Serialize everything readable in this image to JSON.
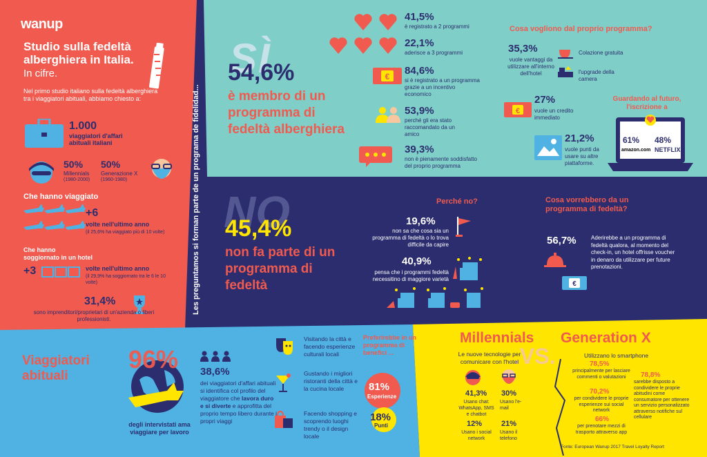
{
  "colors": {
    "red": "#f05a4f",
    "teal": "#7fcfc8",
    "navy": "#2b2d6e",
    "light_blue": "#4fb2e3",
    "yellow": "#ffe500"
  },
  "brand": "wanup",
  "left": {
    "title": "Studio sulla fedeltà alberghiera in Italia.",
    "subtitle": "In cifre.",
    "intro": "Nel primo studio italiano sulla fedeltà alberghiera tra i viaggiatori abituali, abbiamo chiesto a:",
    "count": "1.000",
    "count_label": "viaggiatori d'affari abituali italiani",
    "millennials_pct": "50%",
    "millennials_label": "Millennials",
    "millennials_years": "(1980-2000)",
    "genx_pct": "50%",
    "genx_label": "Generazione X",
    "genx_years": "(1960-1980)",
    "travel_heading": "Che hanno viaggiato",
    "travel_value": "+6",
    "travel_label": "volte nell'ultimo anno",
    "travel_note": "(il 25,6% ha viaggiato più di 10 volte)",
    "hotel_heading": "Che hanno soggiornato in un hotel",
    "hotel_value": "+3",
    "hotel_label": "volte nell'ultimo anno",
    "hotel_note": "(il 29,9% ha soggiornato tra le 6 le 10 volte)",
    "entre_pct": "31,4%",
    "entre_label": "sono imprenditori/proprietari di un'azienda o liberi professionisti."
  },
  "vertical_label": "Les preguntamos si forman parte de un programa de fidelidad...",
  "si": {
    "word": "SÌ",
    "pct": "54,6%",
    "text": "è membro di un programma di fedeltà alberghiera",
    "stats": [
      {
        "pct": "41,5%",
        "text": "è registrato a 2 programmi"
      },
      {
        "pct": "22,1%",
        "text": "aderisce a 3 programmi"
      },
      {
        "pct": "84,6%",
        "text": "si è registrato a un programma grazie a un incentivo economico"
      },
      {
        "pct": "53,9%",
        "text": "perché gli era stato raccomandato da un amico"
      },
      {
        "pct": "39,3%",
        "text": "non è pienamente soddisfatto del proprio programma"
      }
    ],
    "want_heading": "Cosa vogliono dal proprio programma?",
    "want_pct": "35,3%",
    "want_text": "vuole vantaggi da utilizzare all'interno dell'hotel",
    "breakfast": "Colazione gratuita",
    "upgrade": "l'upgrade della camera",
    "credit_pct": "27%",
    "credit_text": "vuole un credito immediato",
    "future_heading": "Guardando al futuro, l'iscrizione a",
    "amazon_pct": "61%",
    "amazon": "amazon.com",
    "netflix_pct": "48%",
    "netflix": "NETFLIX",
    "points_pct": "21,2%",
    "points_text": "vuole punti da usare su altre piattaforme."
  },
  "no": {
    "word": "NO",
    "pct": "45,4%",
    "text": "non fa parte di un programma di fedeltà",
    "why_heading": "Perché no?",
    "why1_pct": "19,6%",
    "why1_text": "non sa che cosa sia un programma di fedeltà o lo trova difficile da capire",
    "why2_pct": "40,9%",
    "why2_text": "pensa che i programmi fedeltà necessitino di maggiore varietà",
    "would_heading": "Cosa vorrebbero da un programma di fedeltà?",
    "would_pct": "56,7%",
    "would_text": "Aderirebbe a un programma di fedeltà qualora, al momento del check-in, un hotel offrisse voucher in denaro da utilizzare per future prenotazioni."
  },
  "bottom": {
    "title": "Viaggiatori abituali",
    "pct96": "96%",
    "pct96_text": "degli intervistati ama viaggiare per lavoro",
    "pct386": "38,6%",
    "text386_a": "dei viaggiatori d'affari abituali si identifica col profilo del viaggiatore che ",
    "text386_b": "lavora duro e si diverte",
    "text386_c": " e approfitta del proprio tempo libero durante i propri viaggi",
    "act1": "Visitando la città e facendo esperienze culturali locali",
    "act2": "Gustando i migliori ristoranti della città e la cucina locale",
    "act3": "Facendo shopping e scoprendo luoghi trendy o il design locale",
    "pref_heading": "Preferirebbe in un programma di benefici ...",
    "exp_pct": "81%",
    "exp_label": "Esperienze",
    "pts_pct": "18%",
    "pts_label": "Punti"
  },
  "vs": {
    "millennials": "Millennials",
    "genx": "Generation X",
    "vs": ".VS.",
    "tech_heading": "Le nuove tecnologie per comunicare con l'hotel",
    "m1_pct": "41,3%",
    "m1_text": "Usano chat: WhatsApp, SMS e chatbot",
    "g1_pct": "30%",
    "g1_text": "Usano l'e-mail",
    "m2_pct": "12%",
    "m2_text": "Usano i social network",
    "g2_pct": "21%",
    "g2_text": "Usano il telefono",
    "smart_heading": "Utilizzano lo smartphone",
    "s1_pct": "78,5%",
    "s1_text": "principalmente per lasciare commenti o valutazioni",
    "s2_pct": "70,2%",
    "s2_text": "per condividere le proprie esperienze sui social network",
    "s3_pct": "66%",
    "s3_text": "per prenotare mezzi di trasporto attraverso app",
    "s4_pct": "78,8%",
    "s4_text": "sarebbe disposto a condividere le proprie abitudini come consumatore per ottenere un servizio personalizzato attraverso notifiche sul cellulare",
    "source": "Fonte: European Wanup 2017 Travel Loyalty Report"
  }
}
